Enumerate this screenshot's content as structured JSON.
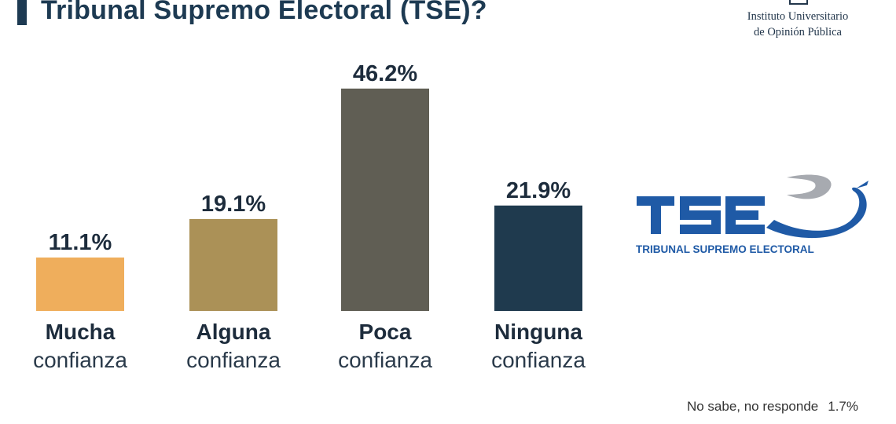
{
  "title": "Tribunal Supremo Electoral (TSE)?",
  "org": {
    "line1": "Instituto Universitario",
    "line2": "de Opinión Pública"
  },
  "logo": {
    "wordmark": "TSE",
    "subtitle": "TRIBUNAL SUPREMO ELECTORAL",
    "color": "#1f5aa6"
  },
  "footnote": {
    "label": "No sabe, no responde",
    "value": "1.7%"
  },
  "chart_data": {
    "type": "bar",
    "categories": [
      {
        "bold": "Mucha",
        "light": "confianza"
      },
      {
        "bold": "Alguna",
        "light": "confianza"
      },
      {
        "bold": "Poca",
        "light": "confianza"
      },
      {
        "bold": "Ninguna",
        "light": "confianza"
      }
    ],
    "values": [
      11.1,
      19.1,
      46.2,
      21.9
    ],
    "value_labels": [
      "11.1%",
      "19.1%",
      "46.2%",
      "21.9%"
    ],
    "colors": [
      "#efae5c",
      "#ab9157",
      "#605e54",
      "#1f3a4e"
    ],
    "unit": "%",
    "grid": false,
    "legend": "none"
  }
}
